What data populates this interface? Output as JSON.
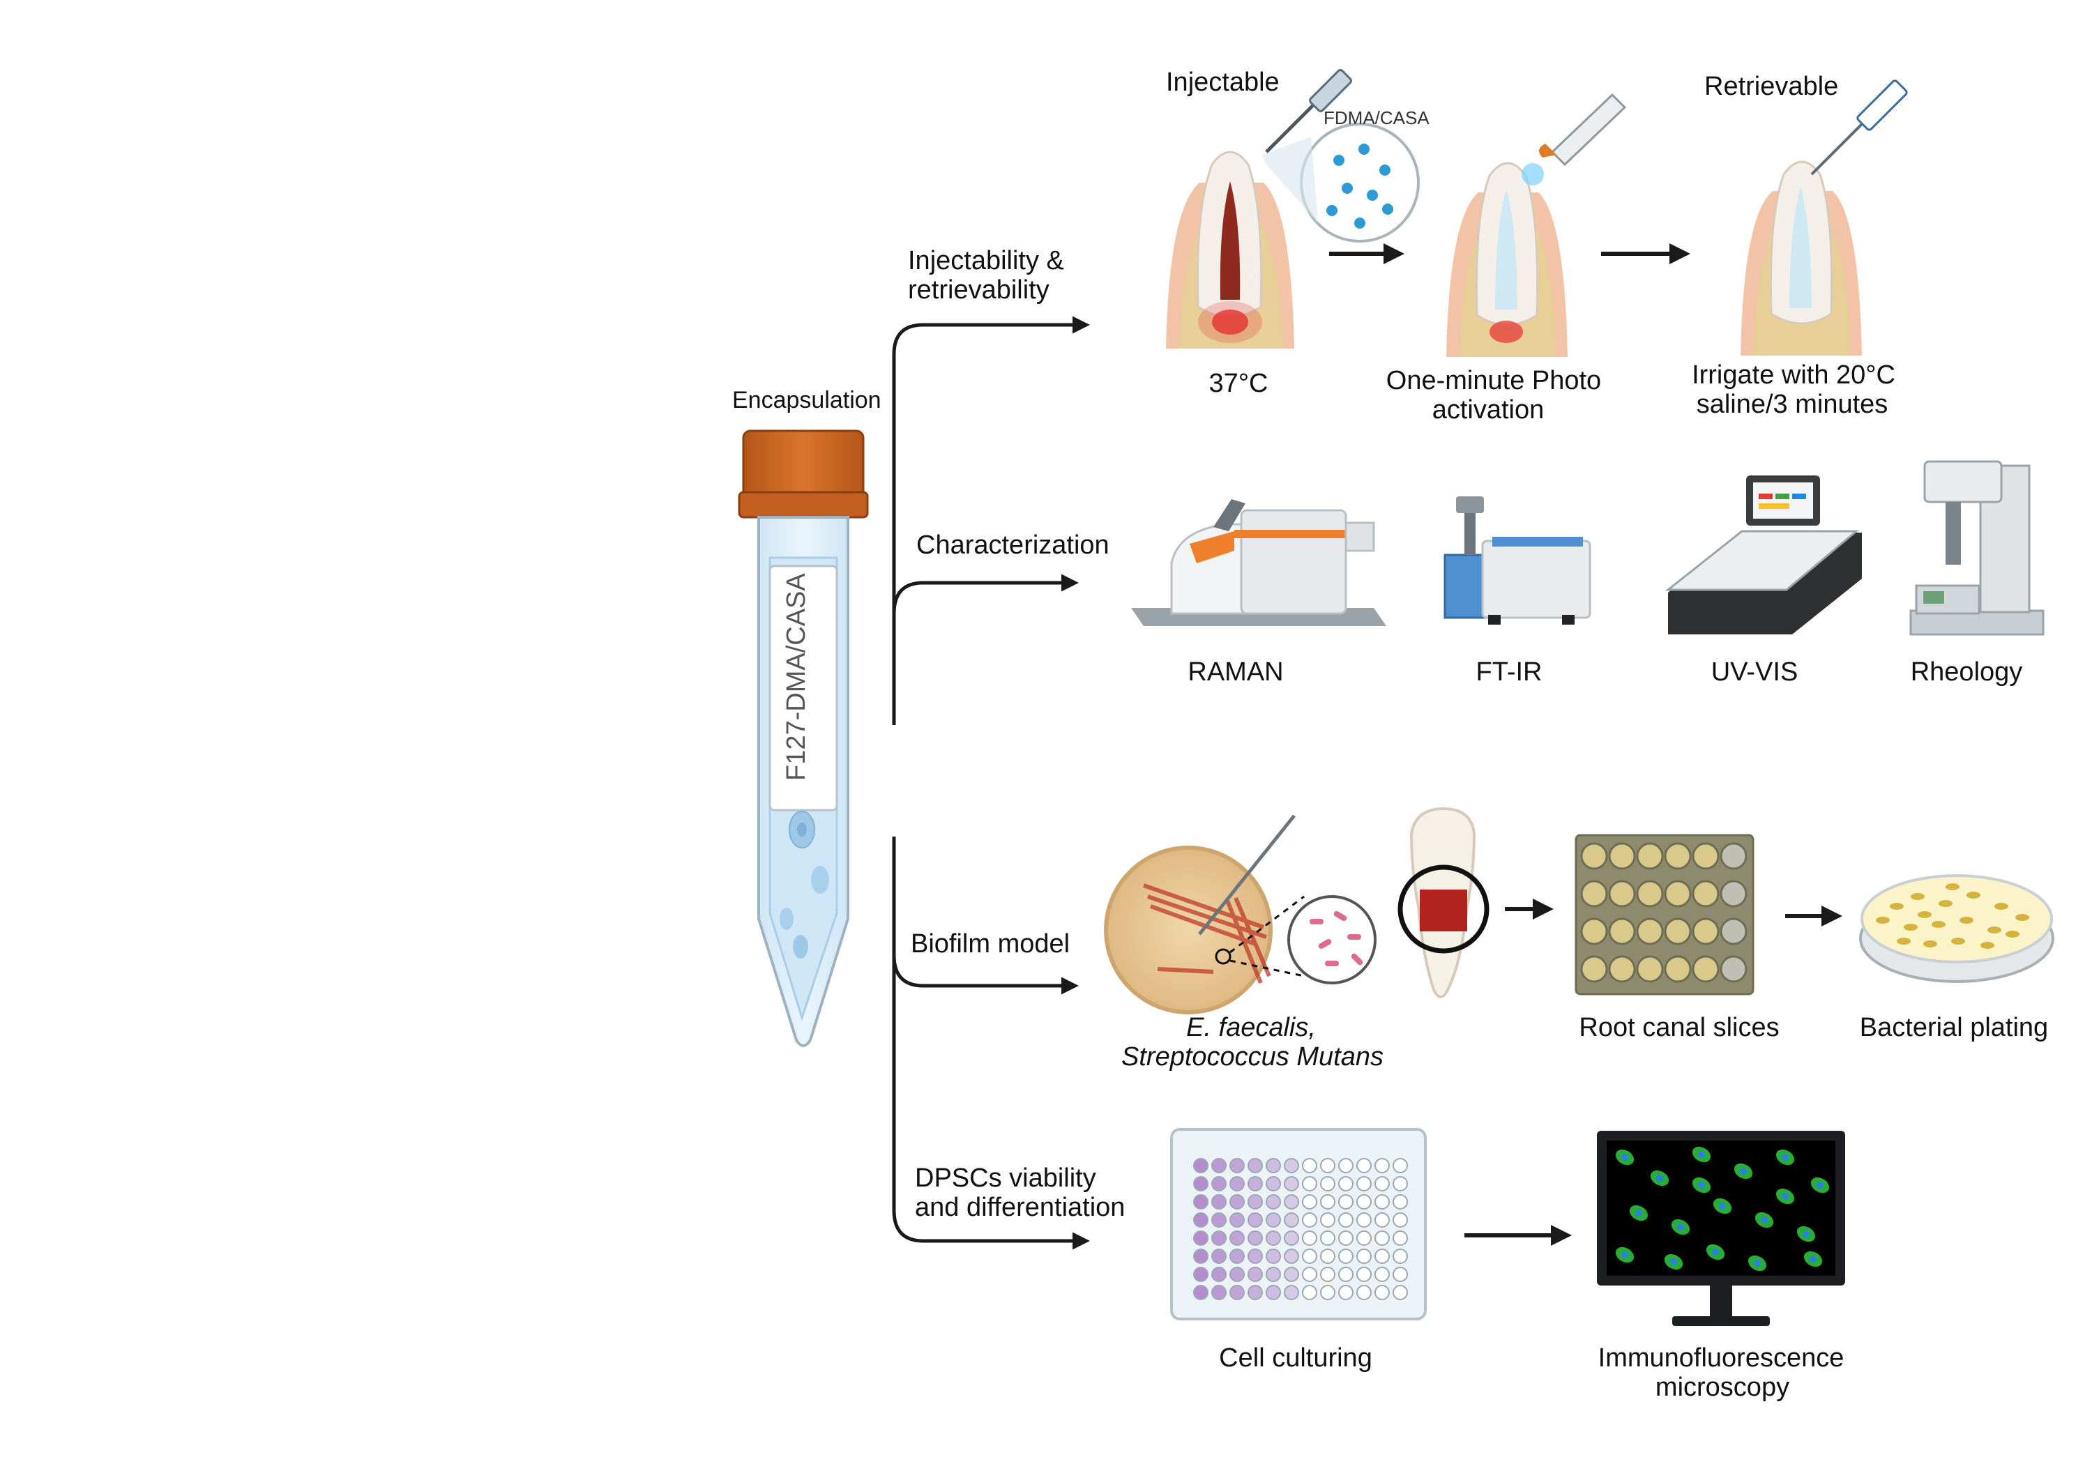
{
  "tube": {
    "header": "Encapsulation",
    "label": "F127-DMA/CASA"
  },
  "branches": [
    {
      "label_line1": "Injectability &",
      "label_line2": "retrievability"
    },
    {
      "label_line1": "Characterization",
      "label_line2": ""
    },
    {
      "label_line1": "Biofilm model",
      "label_line2": ""
    },
    {
      "label_line1": "DPSCs viability",
      "label_line2": "and differentiation"
    }
  ],
  "injectability": {
    "title_injectable": "Injectable",
    "title_retrievable": "Retrievable",
    "inset_label": "FDMA/CASA",
    "step1": "37°C",
    "step2_line1": "One-minute Photo",
    "step2_line2": "activation",
    "step3_line1": "Irrigate with 20°C",
    "step3_line2": "saline/3 minutes"
  },
  "characterization": {
    "items": [
      "RAMAN",
      "FT-IR",
      "UV-VIS",
      "Rheology"
    ]
  },
  "biofilm": {
    "species_line1": "E. faecalis,",
    "species_line2": "Streptococcus Mutans",
    "slices": "Root canal slices",
    "plating": "Bacterial plating"
  },
  "dpsc": {
    "culturing": "Cell culturing",
    "micro_line1": "Immunofluorescence",
    "micro_line2": "microscopy"
  },
  "colors": {
    "cap": "#c8651f",
    "tube_fill": "#dcedf8",
    "gum": "#f3c3a8",
    "bone": "#e8cf97",
    "well_purple": "#b48ccf",
    "arrow": "#1a1a1a"
  }
}
